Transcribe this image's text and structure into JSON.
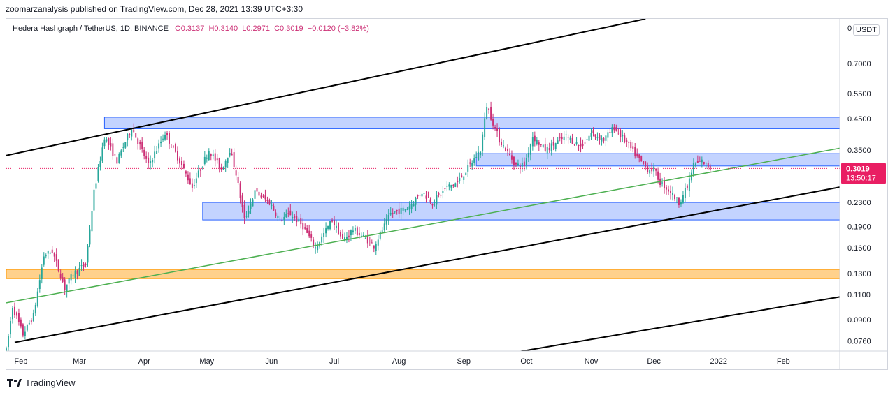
{
  "header": {
    "published": "zoomarzanalysis published on TradingView.com, Dec 28, 2021 13:39 UTC+3:30"
  },
  "legend": {
    "symbol": "Hedera Hashgraph / TetherUS, 1D, BINANCE",
    "open": "O0.3137",
    "high": "H0.3140",
    "low": "L0.2971",
    "close": "C0.3019",
    "change": "−0.0120 (−3.82%)"
  },
  "currency_button": "USDT",
  "price_label": {
    "price": "0.3019",
    "countdown": "13:50:17",
    "color": "#e91e63"
  },
  "footer": {
    "brand": "TradingView"
  },
  "colors": {
    "up": "#26a69a",
    "down": "#cc2f75",
    "zone_blue": "#2962ff",
    "zone_orange": "#ff9800",
    "trend_green": "#4caf50",
    "channel": "#000000"
  },
  "chart_data": {
    "type": "candlestick",
    "y_scale": "log",
    "y_ticks": [
      "0.7000",
      "0.5500",
      "0.4500",
      "0.3500",
      "0.2300",
      "0.1900",
      "0.1600",
      "0.1300",
      "0.1100",
      "0.0900",
      "0.0760"
    ],
    "x_ticks": [
      "Feb",
      "Mar",
      "Apr",
      "May",
      "Jun",
      "Jul",
      "Aug",
      "Sep",
      "Oct",
      "Nov",
      "Dec",
      "2022",
      "Feb"
    ],
    "ylim": [
      0.07,
      1.0
    ],
    "xlim": [
      "2021-01-25",
      "2022-02-28"
    ],
    "last_price": 0.3019,
    "price_path": [
      [
        "2021-01-25",
        0.07
      ],
      [
        "2021-01-28",
        0.1
      ],
      [
        "2021-02-02",
        0.08
      ],
      [
        "2021-02-07",
        0.093
      ],
      [
        "2021-02-12",
        0.15
      ],
      [
        "2021-02-16",
        0.156
      ],
      [
        "2021-02-22",
        0.116
      ],
      [
        "2021-02-26",
        0.13
      ],
      [
        "2021-03-04",
        0.14
      ],
      [
        "2021-03-08",
        0.25
      ],
      [
        "2021-03-13",
        0.39
      ],
      [
        "2021-03-19",
        0.32
      ],
      [
        "2021-03-26",
        0.42
      ],
      [
        "2021-04-03",
        0.31
      ],
      [
        "2021-04-11",
        0.4
      ],
      [
        "2021-04-18",
        0.32
      ],
      [
        "2021-04-24",
        0.26
      ],
      [
        "2021-05-02",
        0.35
      ],
      [
        "2021-05-08",
        0.3
      ],
      [
        "2021-05-12",
        0.35
      ],
      [
        "2021-05-15",
        0.29
      ],
      [
        "2021-05-19",
        0.2
      ],
      [
        "2021-05-24",
        0.25
      ],
      [
        "2021-05-31",
        0.23
      ],
      [
        "2021-06-05",
        0.2
      ],
      [
        "2021-06-10",
        0.21
      ],
      [
        "2021-06-16",
        0.19
      ],
      [
        "2021-06-22",
        0.16
      ],
      [
        "2021-06-30",
        0.2
      ],
      [
        "2021-07-05",
        0.17
      ],
      [
        "2021-07-10",
        0.185
      ],
      [
        "2021-07-17",
        0.17
      ],
      [
        "2021-07-20",
        0.162
      ],
      [
        "2021-07-28",
        0.21
      ],
      [
        "2021-08-05",
        0.22
      ],
      [
        "2021-08-12",
        0.25
      ],
      [
        "2021-08-17",
        0.23
      ],
      [
        "2021-08-24",
        0.26
      ],
      [
        "2021-08-29",
        0.27
      ],
      [
        "2021-09-04",
        0.31
      ],
      [
        "2021-09-09",
        0.35
      ],
      [
        "2021-09-12",
        0.5
      ],
      [
        "2021-09-18",
        0.38
      ],
      [
        "2021-09-26",
        0.31
      ],
      [
        "2021-09-30",
        0.31
      ],
      [
        "2021-10-04",
        0.39
      ],
      [
        "2021-10-10",
        0.35
      ],
      [
        "2021-10-20",
        0.39
      ],
      [
        "2021-10-27",
        0.36
      ],
      [
        "2021-11-01",
        0.4
      ],
      [
        "2021-11-07",
        0.38
      ],
      [
        "2021-11-12",
        0.42
      ],
      [
        "2021-11-18",
        0.37
      ],
      [
        "2021-11-23",
        0.33
      ],
      [
        "2021-11-28",
        0.3
      ],
      [
        "2021-12-01",
        0.3
      ],
      [
        "2021-12-04",
        0.27
      ],
      [
        "2021-12-09",
        0.25
      ],
      [
        "2021-12-13",
        0.23
      ],
      [
        "2021-12-17",
        0.26
      ],
      [
        "2021-12-20",
        0.31
      ],
      [
        "2021-12-24",
        0.32
      ],
      [
        "2021-12-28",
        0.3019
      ]
    ],
    "zones": [
      {
        "color": "blue",
        "from": "2021-03-13",
        "to": "2022-02-28",
        "low": 0.415,
        "high": 0.455
      },
      {
        "color": "blue",
        "from": "2021-09-07",
        "to": "2022-02-28",
        "low": 0.308,
        "high": 0.34
      },
      {
        "color": "blue",
        "from": "2021-04-29",
        "to": "2022-02-28",
        "low": 0.2,
        "high": 0.23
      },
      {
        "color": "orange",
        "from": "2021-01-25",
        "to": "2022-02-28",
        "low": 0.125,
        "high": 0.1345
      }
    ],
    "trendlines": [
      {
        "color": "black",
        "from": [
          "2021-01-25",
          0.335
        ],
        "to": [
          "2021-11-27",
          1.0
        ]
      },
      {
        "color": "black",
        "from": [
          "2021-01-29",
          0.075
        ],
        "to": [
          "2022-02-28",
          0.26
        ]
      },
      {
        "color": "black",
        "from": [
          "2021-09-19",
          0.068
        ],
        "to": [
          "2022-02-28",
          0.108
        ]
      },
      {
        "color": "green",
        "from": [
          "2021-01-25",
          0.103
        ],
        "to": [
          "2022-02-28",
          0.355
        ]
      }
    ]
  }
}
